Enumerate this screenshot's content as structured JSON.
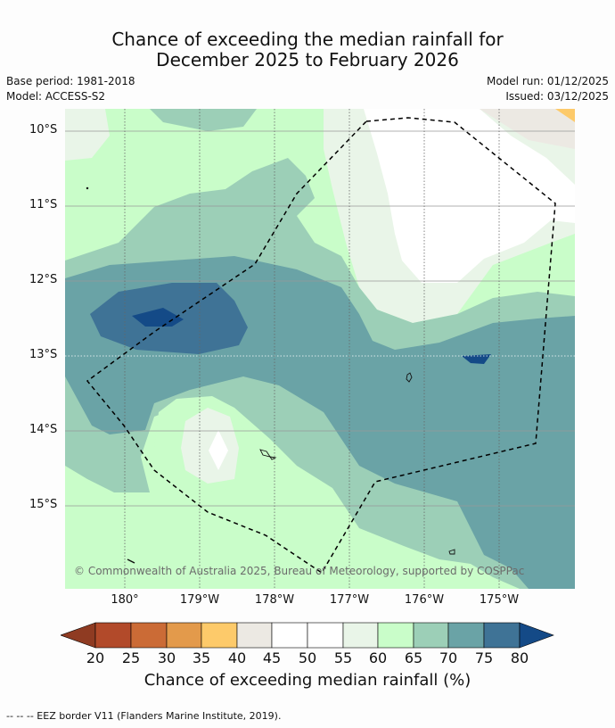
{
  "title": {
    "line1": "Chance of exceeding the median rainfall for",
    "line2": "December 2025 to February 2026"
  },
  "meta": {
    "base_period": "Base period: 1981-2018",
    "model": "Model: ACCESS-S2",
    "model_run": "Model run: 01/12/2025",
    "issued": "Issued: 03/12/2025"
  },
  "map": {
    "lat_labels": [
      "10°S",
      "11°S",
      "12°S",
      "13°S",
      "14°S",
      "15°S"
    ],
    "lon_labels": [
      "180°",
      "179°W",
      "178°W",
      "177°W",
      "176°W",
      "175°W"
    ],
    "copyright": "© Commonwealth of Australia 2025, Bureau of Meteorology, supported by COSPPac"
  },
  "colorbar": {
    "label": "Chance of exceeding median rainfall (%)",
    "ticks": [
      "20",
      "25",
      "30",
      "35",
      "40",
      "45",
      "50",
      "55",
      "60",
      "65",
      "70",
      "75",
      "80"
    ],
    "colors": {
      "below_20": "#8f3b22",
      "c20_25": "#b24a2a",
      "c25_30": "#cb6b36",
      "c30_35": "#e39a4b",
      "c35_40": "#fdca6a",
      "c40_45": "#ece9e3",
      "c45_50": "#ffffff",
      "c50_55": "#ffffff",
      "c55_60": "#e9f5e8",
      "c60_65": "#c9fdc9",
      "c65_70": "#9ccfb7",
      "c70_75": "#6aa3a6",
      "c75_80": "#3f7396",
      "above_80": "#144a87"
    }
  },
  "footer": "--  --  -- EEZ border V11 (Flanders Marine Institute, 2019)."
}
